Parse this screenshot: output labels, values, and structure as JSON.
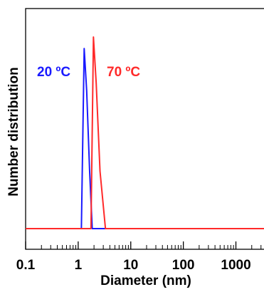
{
  "chart_data": {
    "type": "line",
    "xlabel": "Diameter (nm)",
    "ylabel": "Number distribution",
    "x_scale": "log",
    "xlim": [
      0.1,
      4000
    ],
    "ylim": [
      0,
      1.0
    ],
    "x_ticks": [
      "0.1",
      "1",
      "10",
      "100",
      "1000"
    ],
    "grid": false,
    "series": [
      {
        "name": "20 ºC",
        "color": "#1a1aff",
        "x": [
          0.1,
          1.15,
          1.3,
          1.45,
          1.65,
          1.85,
          4000
        ],
        "y": [
          0,
          0,
          0.94,
          0.72,
          0.3,
          0,
          0
        ]
      },
      {
        "name": "70 ºC",
        "color": "#ff2a2a",
        "x": [
          0.1,
          1.75,
          1.95,
          2.2,
          2.6,
          3.3,
          4000
        ],
        "y": [
          0,
          0,
          1.0,
          0.76,
          0.3,
          0,
          0
        ]
      }
    ]
  }
}
